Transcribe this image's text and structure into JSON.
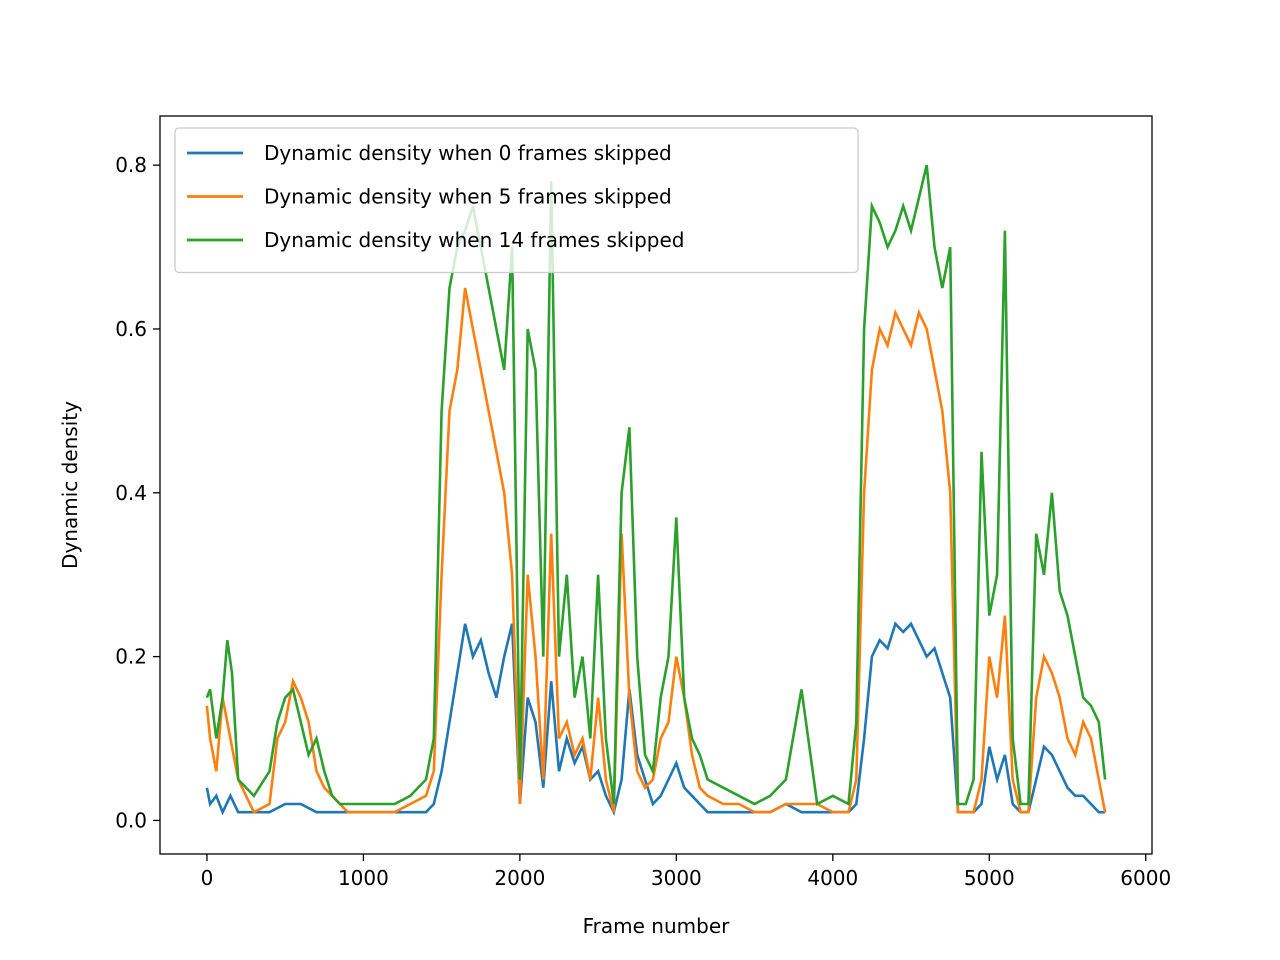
{
  "chart_data": {
    "type": "line",
    "title": "",
    "xlabel": "Frame number",
    "ylabel": "Dynamic density",
    "xlim": [
      -300,
      6040
    ],
    "ylim": [
      -0.041,
      0.86
    ],
    "xticks": [
      0,
      1000,
      2000,
      3000,
      4000,
      5000,
      6000
    ],
    "xtick_labels": [
      "0",
      "1000",
      "2000",
      "3000",
      "4000",
      "5000",
      "6000"
    ],
    "yticks": [
      0.0,
      0.2,
      0.4,
      0.6,
      0.8
    ],
    "ytick_labels": [
      "0.0",
      "0.2",
      "0.4",
      "0.6",
      "0.8"
    ],
    "grid": false,
    "legend_position": "upper-left",
    "series": [
      {
        "name": "Dynamic density when 0 frames skipped",
        "color": "#1f77b4",
        "x": [
          0,
          20,
          60,
          100,
          150,
          200,
          300,
          400,
          500,
          600,
          700,
          800,
          900,
          1000,
          1100,
          1200,
          1300,
          1400,
          1450,
          1500,
          1550,
          1600,
          1650,
          1700,
          1750,
          1800,
          1850,
          1900,
          1950,
          2000,
          2050,
          2100,
          2150,
          2200,
          2250,
          2300,
          2350,
          2400,
          2450,
          2500,
          2550,
          2600,
          2650,
          2700,
          2750,
          2800,
          2850,
          2900,
          2950,
          3000,
          3050,
          3100,
          3150,
          3200,
          3300,
          3400,
          3500,
          3600,
          3700,
          3800,
          3900,
          4000,
          4100,
          4150,
          4200,
          4250,
          4300,
          4350,
          4400,
          4450,
          4500,
          4550,
          4600,
          4650,
          4700,
          4750,
          4800,
          4850,
          4900,
          4950,
          5000,
          5050,
          5100,
          5150,
          5200,
          5250,
          5300,
          5350,
          5400,
          5450,
          5500,
          5550,
          5600,
          5650,
          5700,
          5740
        ],
        "y": [
          0.04,
          0.02,
          0.03,
          0.01,
          0.03,
          0.01,
          0.01,
          0.01,
          0.02,
          0.02,
          0.01,
          0.01,
          0.01,
          0.01,
          0.01,
          0.01,
          0.01,
          0.01,
          0.02,
          0.06,
          0.12,
          0.18,
          0.24,
          0.2,
          0.22,
          0.18,
          0.15,
          0.2,
          0.24,
          0.02,
          0.15,
          0.12,
          0.04,
          0.17,
          0.06,
          0.1,
          0.07,
          0.09,
          0.05,
          0.06,
          0.03,
          0.01,
          0.05,
          0.16,
          0.08,
          0.05,
          0.02,
          0.03,
          0.05,
          0.07,
          0.04,
          0.03,
          0.02,
          0.01,
          0.01,
          0.01,
          0.01,
          0.01,
          0.02,
          0.01,
          0.01,
          0.01,
          0.01,
          0.02,
          0.1,
          0.2,
          0.22,
          0.21,
          0.24,
          0.23,
          0.24,
          0.22,
          0.2,
          0.21,
          0.18,
          0.15,
          0.01,
          0.01,
          0.01,
          0.02,
          0.09,
          0.05,
          0.08,
          0.02,
          0.01,
          0.01,
          0.05,
          0.09,
          0.08,
          0.06,
          0.04,
          0.03,
          0.03,
          0.02,
          0.01,
          0.01
        ]
      },
      {
        "name": "Dynamic density when 5 frames skipped",
        "color": "#ff7f0e",
        "x": [
          0,
          20,
          60,
          100,
          150,
          200,
          300,
          400,
          450,
          500,
          550,
          600,
          650,
          700,
          750,
          800,
          850,
          900,
          1000,
          1100,
          1200,
          1300,
          1400,
          1450,
          1500,
          1550,
          1600,
          1650,
          1700,
          1750,
          1800,
          1850,
          1900,
          1950,
          2000,
          2050,
          2100,
          2150,
          2200,
          2250,
          2300,
          2350,
          2400,
          2450,
          2500,
          2550,
          2600,
          2650,
          2700,
          2750,
          2800,
          2850,
          2900,
          2950,
          3000,
          3050,
          3100,
          3150,
          3200,
          3300,
          3400,
          3500,
          3600,
          3700,
          3800,
          3900,
          4000,
          4100,
          4150,
          4200,
          4250,
          4300,
          4350,
          4400,
          4450,
          4500,
          4550,
          4600,
          4650,
          4700,
          4750,
          4800,
          4850,
          4900,
          4950,
          5000,
          5050,
          5100,
          5150,
          5200,
          5250,
          5300,
          5350,
          5400,
          5450,
          5500,
          5550,
          5600,
          5650,
          5700,
          5740
        ],
        "y": [
          0.14,
          0.1,
          0.06,
          0.15,
          0.1,
          0.05,
          0.01,
          0.02,
          0.1,
          0.12,
          0.17,
          0.15,
          0.12,
          0.06,
          0.04,
          0.03,
          0.02,
          0.01,
          0.01,
          0.01,
          0.01,
          0.02,
          0.03,
          0.06,
          0.3,
          0.5,
          0.55,
          0.65,
          0.6,
          0.55,
          0.5,
          0.45,
          0.4,
          0.3,
          0.02,
          0.3,
          0.2,
          0.05,
          0.35,
          0.1,
          0.12,
          0.08,
          0.1,
          0.05,
          0.15,
          0.05,
          0.01,
          0.35,
          0.15,
          0.06,
          0.04,
          0.05,
          0.1,
          0.12,
          0.2,
          0.15,
          0.08,
          0.04,
          0.03,
          0.02,
          0.02,
          0.01,
          0.01,
          0.02,
          0.02,
          0.02,
          0.01,
          0.01,
          0.05,
          0.4,
          0.55,
          0.6,
          0.58,
          0.62,
          0.6,
          0.58,
          0.62,
          0.6,
          0.55,
          0.5,
          0.4,
          0.01,
          0.01,
          0.01,
          0.05,
          0.2,
          0.15,
          0.25,
          0.05,
          0.01,
          0.01,
          0.15,
          0.2,
          0.18,
          0.15,
          0.1,
          0.08,
          0.12,
          0.1,
          0.05,
          0.01
        ]
      },
      {
        "name": "Dynamic density when 14 frames skipped",
        "color": "#2ca02c",
        "x": [
          0,
          20,
          60,
          100,
          130,
          160,
          200,
          300,
          400,
          450,
          500,
          550,
          600,
          650,
          700,
          750,
          800,
          850,
          900,
          1000,
          1100,
          1200,
          1300,
          1400,
          1450,
          1500,
          1550,
          1600,
          1650,
          1700,
          1750,
          1800,
          1850,
          1900,
          1950,
          2000,
          2050,
          2100,
          2150,
          2200,
          2250,
          2300,
          2350,
          2400,
          2450,
          2500,
          2550,
          2600,
          2650,
          2700,
          2750,
          2800,
          2850,
          2900,
          2950,
          3000,
          3050,
          3100,
          3150,
          3200,
          3300,
          3400,
          3500,
          3600,
          3700,
          3800,
          3900,
          4000,
          4100,
          4150,
          4200,
          4250,
          4300,
          4350,
          4400,
          4450,
          4500,
          4550,
          4600,
          4650,
          4700,
          4750,
          4800,
          4850,
          4900,
          4950,
          5000,
          5050,
          5100,
          5150,
          5200,
          5250,
          5300,
          5350,
          5400,
          5450,
          5500,
          5550,
          5600,
          5650,
          5700,
          5740
        ],
        "y": [
          0.15,
          0.16,
          0.1,
          0.15,
          0.22,
          0.18,
          0.05,
          0.03,
          0.06,
          0.12,
          0.15,
          0.16,
          0.12,
          0.08,
          0.1,
          0.06,
          0.03,
          0.02,
          0.02,
          0.02,
          0.02,
          0.02,
          0.03,
          0.05,
          0.1,
          0.5,
          0.65,
          0.7,
          0.72,
          0.75,
          0.7,
          0.65,
          0.6,
          0.55,
          0.7,
          0.05,
          0.6,
          0.55,
          0.2,
          0.78,
          0.2,
          0.3,
          0.15,
          0.2,
          0.1,
          0.3,
          0.1,
          0.02,
          0.4,
          0.48,
          0.2,
          0.08,
          0.06,
          0.15,
          0.2,
          0.37,
          0.15,
          0.1,
          0.08,
          0.05,
          0.04,
          0.03,
          0.02,
          0.03,
          0.05,
          0.16,
          0.02,
          0.03,
          0.02,
          0.12,
          0.6,
          0.75,
          0.73,
          0.7,
          0.72,
          0.75,
          0.72,
          0.76,
          0.8,
          0.7,
          0.65,
          0.7,
          0.02,
          0.02,
          0.05,
          0.45,
          0.25,
          0.3,
          0.72,
          0.1,
          0.02,
          0.02,
          0.35,
          0.3,
          0.4,
          0.28,
          0.25,
          0.2,
          0.15,
          0.14,
          0.12,
          0.05
        ]
      }
    ]
  }
}
